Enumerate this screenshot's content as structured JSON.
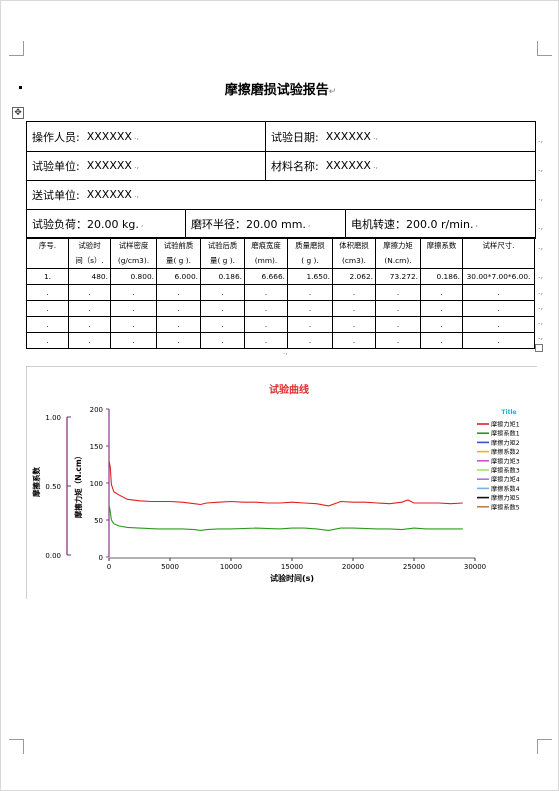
{
  "document": {
    "title": "摩擦磨损试验报告",
    "paragraph_mark": "↵"
  },
  "info": {
    "operator_label": "操作人员:",
    "operator_value": "XXXXXX",
    "test_date_label": "试验日期:",
    "test_date_value": "XXXXXX",
    "test_unit_label": "试验单位:",
    "test_unit_value": "XXXXXX",
    "material_label": "材料名称:",
    "material_value": "XXXXXX",
    "sender_label": "送试单位:",
    "sender_value": "XXXXXX",
    "load": "试验负荷：20.00 kg.",
    "ring_radius": "磨环半径：20.00 mm.",
    "motor_speed": "电机转速：200.0 r/min."
  },
  "results_table": {
    "headers": [
      [
        "序号.",
        ""
      ],
      [
        "试验时",
        "间（s）."
      ],
      [
        "试样密度",
        "(g/cm3)."
      ],
      [
        "试验前质",
        "量( g )."
      ],
      [
        "试验后质",
        "量( g )."
      ],
      [
        "磨痕宽度",
        "(mm)."
      ],
      [
        "质量磨损",
        "( g )."
      ],
      [
        "体积磨损",
        "(cm3)."
      ],
      [
        "摩擦力矩",
        "(N.cm)."
      ],
      [
        "摩擦系数",
        ""
      ],
      [
        "试样尺寸.",
        ""
      ]
    ],
    "rows": [
      [
        "1.",
        "480.",
        "0.800.",
        "6.000.",
        "0.186.",
        "6.666.",
        "1.650.",
        "2.062.",
        "73.272.",
        "0.186.",
        "30.00*7.00*6.00."
      ],
      [
        ".",
        ".",
        ".",
        ".",
        ".",
        ".",
        ".",
        ".",
        ".",
        ".",
        "."
      ],
      [
        ".",
        ".",
        ".",
        ".",
        ".",
        ".",
        ".",
        ".",
        ".",
        ".",
        "."
      ],
      [
        ".",
        ".",
        ".",
        ".",
        ".",
        ".",
        ".",
        ".",
        ".",
        ".",
        "."
      ],
      [
        ".",
        ".",
        ".",
        ".",
        ".",
        ".",
        ".",
        ".",
        ".",
        ".",
        "."
      ]
    ]
  },
  "chart_data": {
    "type": "line",
    "title": "试验曲线",
    "xlabel": "试验时间(s)",
    "ylabel_left": "摩擦系数",
    "ylabel_right": "摩擦力矩（N.cm）",
    "xlim": [
      0,
      30000
    ],
    "x_ticks": [
      "0",
      "5000",
      "10000",
      "15000",
      "20000",
      "25000",
      "30000"
    ],
    "y_left_lim": [
      0,
      1
    ],
    "y_left_ticks": [
      "1.00",
      "0.50",
      "0.00"
    ],
    "y_right_lim": [
      0,
      200
    ],
    "y_right_ticks": [
      "200",
      "150",
      "100",
      "50",
      "0"
    ],
    "legend_title": "Title",
    "legend_placement": "right",
    "legend": [
      {
        "name": "摩擦力矩1",
        "color": "#e02020"
      },
      {
        "name": "摩擦系数1",
        "color": "#2a9a1a"
      },
      {
        "name": "摩擦力矩2",
        "color": "#3a4fd0"
      },
      {
        "name": "摩擦系数2",
        "color": "#f0b030"
      },
      {
        "name": "摩擦力矩3",
        "color": "#cc55cc"
      },
      {
        "name": "摩擦系数3",
        "color": "#a8e070"
      },
      {
        "name": "摩擦力矩4",
        "color": "#b070e0"
      },
      {
        "name": "摩擦系数4",
        "color": "#7ab0e0"
      },
      {
        "name": "摩擦力矩5",
        "color": "#111111"
      },
      {
        "name": "摩擦系数5",
        "color": "#c08040"
      }
    ],
    "series": [
      {
        "name": "摩擦力矩1",
        "axis": "right",
        "color": "#e02020",
        "x": [
          0,
          100,
          200,
          400,
          800,
          1500,
          2500,
          3500,
          5000,
          6000,
          7000,
          7500,
          8000,
          9000,
          10000,
          11000,
          12000,
          13000,
          14000,
          15000,
          16000,
          17000,
          18000,
          19000,
          20000,
          21000,
          22000,
          23000,
          24000,
          24500,
          25000,
          26000,
          27000,
          28000,
          29000
        ],
        "y": [
          130,
          122,
          98,
          88,
          84,
          78,
          76,
          75,
          75,
          74,
          72,
          71,
          73,
          74,
          75,
          74,
          74,
          73,
          73,
          74,
          73,
          72,
          69,
          75,
          74,
          74,
          73,
          72,
          74,
          77,
          73,
          73,
          73,
          72,
          73
        ]
      },
      {
        "name": "摩擦系数1",
        "axis": "right",
        "color": "#2a9a1a",
        "x": [
          0,
          100,
          200,
          400,
          800,
          1500,
          2500,
          4000,
          5000,
          6000,
          7000,
          7500,
          8000,
          9000,
          10000,
          12000,
          14000,
          15000,
          16000,
          17000,
          18000,
          19000,
          20000,
          22000,
          23000,
          24000,
          25000,
          26000,
          27000,
          28000,
          29000
        ],
        "y": [
          70,
          62,
          50,
          45,
          42,
          40,
          39,
          38,
          38,
          38,
          37,
          36,
          37,
          38,
          38,
          39,
          38,
          39,
          39,
          38,
          36,
          39,
          39,
          38,
          38,
          37,
          39,
          38,
          38,
          38,
          38
        ]
      }
    ]
  }
}
